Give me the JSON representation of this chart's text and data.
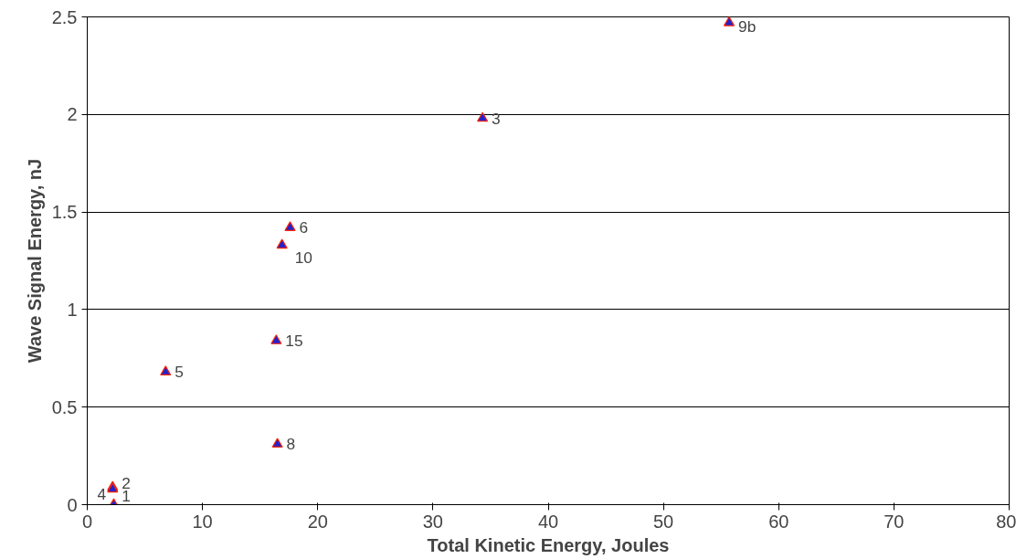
{
  "chart_data": {
    "type": "scatter",
    "xlabel": "Total Kinetic Energy, Joules",
    "ylabel": "Wave Signal Energy, nJ",
    "xlim": [
      0,
      80
    ],
    "xticks": [
      0,
      10,
      20,
      30,
      40,
      50,
      60,
      70,
      80
    ],
    "ylim": [
      0,
      2.5
    ],
    "yticks": [
      0,
      0.5,
      1,
      1.5,
      2,
      2.5
    ],
    "grid": "y",
    "marker": "triangle",
    "series": [
      {
        "color": "#2222cc",
        "x": [
          55.7,
          34.3,
          17.6,
          16.9,
          16.4,
          6.8,
          16.5,
          2.2,
          2.2,
          2.3
        ],
        "values": [
          2.47,
          1.98,
          1.42,
          1.33,
          0.84,
          0.68,
          0.31,
          0.09,
          0.08,
          0.0
        ]
      }
    ],
    "annotations": [
      {
        "text": "9b",
        "x": 55.7,
        "y": 2.47
      },
      {
        "text": "3",
        "x": 34.3,
        "y": 1.98
      },
      {
        "text": "6",
        "x": 17.6,
        "y": 1.42
      },
      {
        "text": "10",
        "x": 16.9,
        "y": 1.33
      },
      {
        "text": "15",
        "x": 16.4,
        "y": 0.84
      },
      {
        "text": "5",
        "x": 6.8,
        "y": 0.68
      },
      {
        "text": "8",
        "x": 16.5,
        "y": 0.31
      },
      {
        "text": "2",
        "x": 2.2,
        "y": 0.09
      },
      {
        "text": "1",
        "x": 2.2,
        "y": 0.08
      },
      {
        "text": "4",
        "x": 2.3,
        "y": 0.0
      }
    ]
  }
}
